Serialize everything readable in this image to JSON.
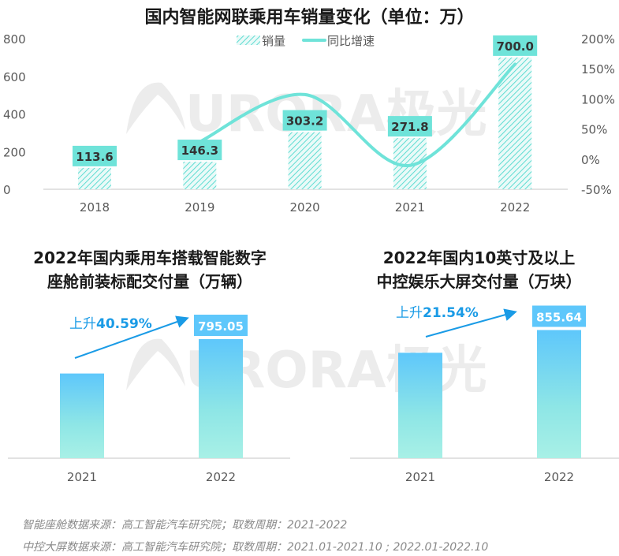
{
  "chart_data": [
    {
      "type": "bar+line",
      "title": "国内智能网联乘用车销量变化（单位：万）",
      "categories": [
        "2018",
        "2019",
        "2020",
        "2021",
        "2022"
      ],
      "series": [
        {
          "name": "销量",
          "type": "bar",
          "axis": "left",
          "values": [
            113.6,
            146.3,
            303.2,
            271.8,
            700.0
          ],
          "labels": [
            "113.6",
            "146.3",
            "303.2",
            "271.8",
            "700.0"
          ]
        },
        {
          "name": "同比增速",
          "type": "line",
          "axis": "right",
          "values": [
            null,
            28.8,
            107.2,
            -10.4,
            157.5
          ]
        }
      ],
      "ylim": [
        0,
        800
      ],
      "yticks": [
        "800",
        "600",
        "400",
        "200",
        "0"
      ],
      "y2lim": [
        -50,
        200
      ],
      "y2ticks": [
        "200%",
        "150%",
        "100%",
        "50%",
        "0%",
        "-50%"
      ],
      "legend": "top",
      "colors": {
        "bar": "#5fdcd2",
        "label_bg": "#6fe3d9",
        "line": "#6fe3d9"
      }
    },
    {
      "type": "bar",
      "title_lines": [
        "2022年国内乘用车搭载智能数字",
        "座舱前装标配交付量（万辆）"
      ],
      "categories": [
        "2021",
        "2022"
      ],
      "values": [
        565.5,
        795.05
      ],
      "data_label": "795.05",
      "annotation_prefix": "上升",
      "annotation_value": "40.59%",
      "colors": {
        "top": "#5ec7fb",
        "bottom": "#a8f0e6",
        "label_bg": "#5ec7fb",
        "arrow": "#1a9be6"
      }
    },
    {
      "type": "bar",
      "title_lines": [
        "2022年国内10英寸及以上",
        "中控娱乐大屏交付量（万块）"
      ],
      "categories": [
        "2021",
        "2022"
      ],
      "values": [
        704.0,
        855.64
      ],
      "data_label": "855.64",
      "annotation_prefix": "上升",
      "annotation_value": "21.54%",
      "colors": {
        "top": "#5ec7fb",
        "bottom": "#a8f0e6",
        "label_bg": "#5ec7fb",
        "arrow": "#1a9be6"
      }
    }
  ],
  "watermark": "URORA极光",
  "sources": [
    "智能座舱数据来源：高工智能汽车研究院；取数周期：2021-2022",
    "中控大屏数据来源：高工智能汽车研究院；取数周期：2021.01-2021.10 ; 2022.01-2022.10"
  ]
}
